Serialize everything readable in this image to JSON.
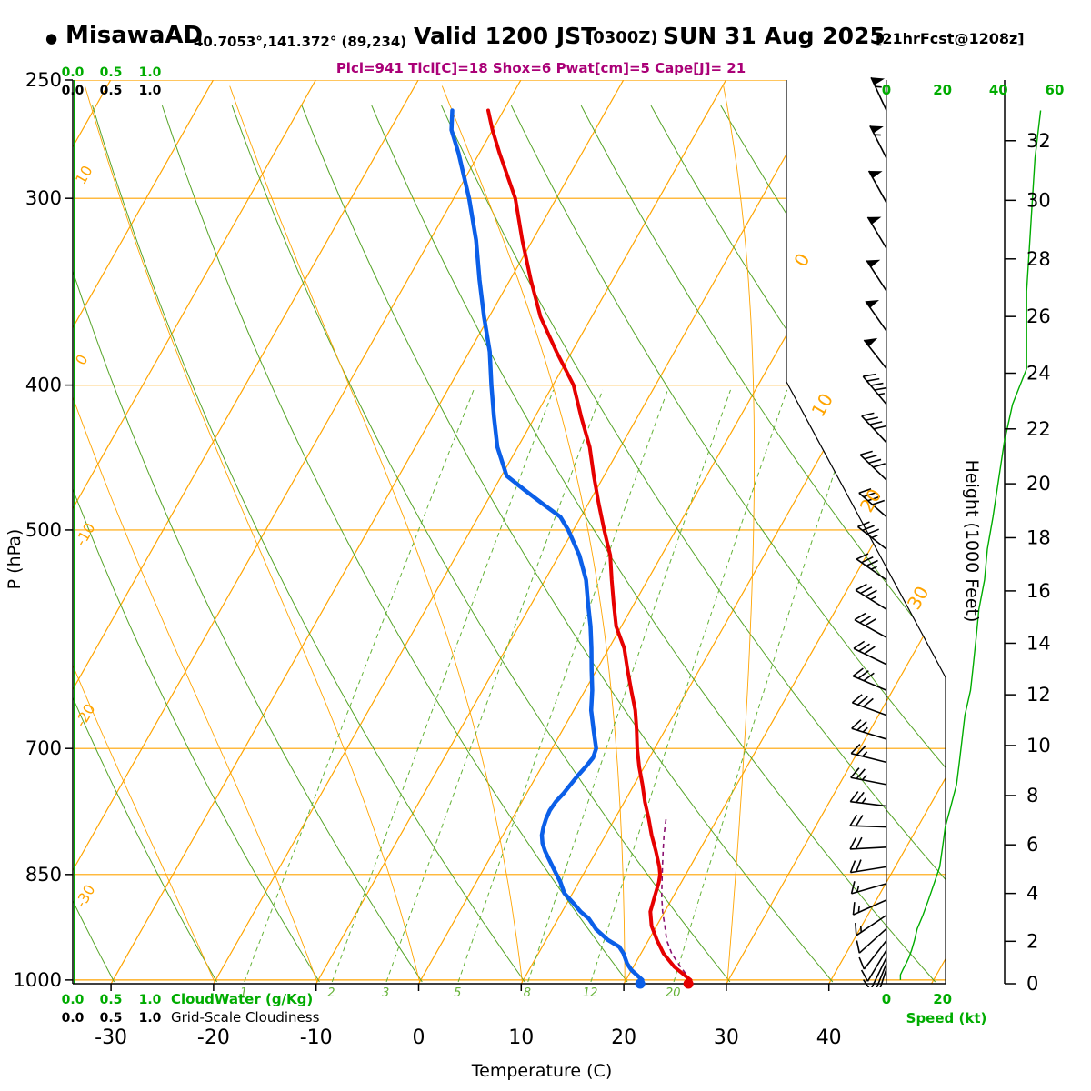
{
  "header": {
    "bullet": "●",
    "station": "MisawaAD",
    "coords": "40.7053°,141.372° (89,234)",
    "valid": "Valid 1200 JST",
    "valid_z": "(0300Z)",
    "valid_date": "SUN 31 Aug 2025",
    "fcst": "[21hrFcst@1208z]",
    "params": "Plcl=941 Tlcl[C]=18 Shox=6 Pwat[cm]=5 Cape[J]= 21"
  },
  "axis_titles": {
    "pressure": "P (hPa)",
    "temperature": "Temperature (C)",
    "height": "Height (1000 Feet)",
    "speed": "Speed (kt)"
  },
  "legends": {
    "cloudwater_scale": [
      "0.0",
      "0.5",
      "1.0"
    ],
    "cloudwater_label": "CloudWater (g/Kg)",
    "cloudiness_scale": [
      "0.0",
      "0.5",
      "1.0"
    ],
    "cloudiness_label": "Grid-Scale Cloudiness",
    "speed_bottom_ticks": [
      "0",
      "20"
    ]
  },
  "colors": {
    "grid_orange": "#FFA400",
    "adiabat_green": "#55A427",
    "mixratio_green": "#64B236",
    "label_green": "#00AC00",
    "temp_red": "#E60000",
    "dew_blue": "#0B5FE8",
    "parcel_purple": "#8A1070",
    "params_magenta": "#AA0077",
    "black": "#000000"
  },
  "chart_data": {
    "type": "skewt_log_p_sounding",
    "station": "MisawaAD 40.7053°,141.372° (89,234)",
    "valid": "Valid 1200 JST (0300Z) SUN 31 Aug 2025 [21hrFcst@1208z]",
    "indices": {
      "plcl_hpa": 941,
      "tlcl_c": 18,
      "showalter": 6,
      "pwat_cm": 5,
      "cape_j": 21
    },
    "pressure_ticks_hpa": [
      250,
      300,
      400,
      500,
      700,
      850,
      1000
    ],
    "temp_ticks_c": [
      -30,
      -20,
      -10,
      0,
      10,
      20,
      30,
      40
    ],
    "height_ticks_kft": [
      0,
      2,
      4,
      6,
      8,
      10,
      12,
      14,
      16,
      18,
      20,
      22,
      24,
      26,
      28,
      30,
      32
    ],
    "speed_ticks_kt": [
      0,
      20,
      40,
      60
    ],
    "isotherm_labels_left_c": [
      10,
      0,
      -10,
      -20,
      -30
    ],
    "isotherm_labels_right_c": [
      0,
      10,
      20,
      30
    ],
    "mixing_ratio_labels_gkg": [
      1,
      2,
      3,
      5,
      8,
      12,
      20
    ],
    "temperature_profile_p_c": [
      [
        262,
        -41.5
      ],
      [
        270,
        -40
      ],
      [
        280,
        -38
      ],
      [
        300,
        -34
      ],
      [
        320,
        -31
      ],
      [
        340,
        -28
      ],
      [
        360,
        -25
      ],
      [
        380,
        -21.5
      ],
      [
        400,
        -18
      ],
      [
        420,
        -15.5
      ],
      [
        440,
        -13
      ],
      [
        460,
        -11
      ],
      [
        480,
        -9
      ],
      [
        500,
        -7
      ],
      [
        520,
        -5
      ],
      [
        540,
        -3.5
      ],
      [
        560,
        -2
      ],
      [
        580,
        -0.5
      ],
      [
        600,
        1.5
      ],
      [
        620,
        3
      ],
      [
        640,
        4.5
      ],
      [
        660,
        6
      ],
      [
        680,
        7.2
      ],
      [
        700,
        8.3
      ],
      [
        720,
        9.5
      ],
      [
        740,
        10.8
      ],
      [
        760,
        12
      ],
      [
        780,
        13.3
      ],
      [
        800,
        14.5
      ],
      [
        820,
        15.8
      ],
      [
        840,
        17
      ],
      [
        850,
        17.5
      ],
      [
        860,
        17.8
      ],
      [
        880,
        18.2
      ],
      [
        900,
        18.6
      ],
      [
        920,
        19.5
      ],
      [
        940,
        20.8
      ],
      [
        960,
        22.2
      ],
      [
        980,
        24
      ],
      [
        1000,
        26.3
      ]
    ],
    "dewpoint_profile_p_c": [
      [
        262,
        -45
      ],
      [
        270,
        -44
      ],
      [
        280,
        -42
      ],
      [
        300,
        -38.5
      ],
      [
        320,
        -35.5
      ],
      [
        340,
        -33
      ],
      [
        360,
        -30.5
      ],
      [
        380,
        -28
      ],
      [
        400,
        -26
      ],
      [
        420,
        -24
      ],
      [
        440,
        -22
      ],
      [
        460,
        -19.5
      ],
      [
        470,
        -17
      ],
      [
        480,
        -14.5
      ],
      [
        490,
        -12
      ],
      [
        500,
        -10.5
      ],
      [
        520,
        -8
      ],
      [
        540,
        -6
      ],
      [
        560,
        -4.5
      ],
      [
        580,
        -3
      ],
      [
        600,
        -1.7
      ],
      [
        620,
        -0.5
      ],
      [
        640,
        0.7
      ],
      [
        660,
        1.7
      ],
      [
        680,
        3
      ],
      [
        700,
        4.3
      ],
      [
        710,
        4.5
      ],
      [
        720,
        4.3
      ],
      [
        730,
        4
      ],
      [
        740,
        3.8
      ],
      [
        750,
        3.6
      ],
      [
        760,
        3.3
      ],
      [
        770,
        3.2
      ],
      [
        780,
        3.3
      ],
      [
        790,
        3.5
      ],
      [
        800,
        3.8
      ],
      [
        810,
        4.3
      ],
      [
        820,
        5
      ],
      [
        830,
        5.8
      ],
      [
        840,
        6.6
      ],
      [
        850,
        7.4
      ],
      [
        860,
        8.2
      ],
      [
        875,
        9.2
      ],
      [
        890,
        10.8
      ],
      [
        900,
        11.8
      ],
      [
        910,
        13
      ],
      [
        925,
        14.3
      ],
      [
        940,
        16
      ],
      [
        950,
        17.5
      ],
      [
        960,
        18.3
      ],
      [
        975,
        19.2
      ],
      [
        985,
        20
      ],
      [
        1000,
        21.6
      ]
    ],
    "parcel_path_p_c": [
      [
        1000,
        26.3
      ],
      [
        980,
        24.6
      ],
      [
        960,
        23
      ],
      [
        941,
        21.8
      ],
      [
        920,
        20.8
      ],
      [
        900,
        19.8
      ],
      [
        880,
        18.9
      ],
      [
        860,
        18.1
      ],
      [
        840,
        17.3
      ],
      [
        820,
        16.5
      ],
      [
        800,
        15.7
      ],
      [
        780,
        15
      ]
    ],
    "surface_temperature_c": 26.3,
    "surface_dewpoint_c": 21.6,
    "wind_profile_p_kt_dir": [
      [
        262,
        55,
        335
      ],
      [
        282,
        53,
        333
      ],
      [
        302,
        52,
        331
      ],
      [
        324,
        51,
        329
      ],
      [
        346,
        50,
        327
      ],
      [
        368,
        50,
        325
      ],
      [
        390,
        50,
        322
      ],
      [
        412,
        45,
        320
      ],
      [
        437,
        42,
        317
      ],
      [
        463,
        40,
        314
      ],
      [
        490,
        38,
        311
      ],
      [
        515,
        36,
        308
      ],
      [
        540,
        35,
        305
      ],
      [
        565,
        33,
        302
      ],
      [
        590,
        32,
        299
      ],
      [
        615,
        31,
        296
      ],
      [
        640,
        30,
        293
      ],
      [
        665,
        28,
        290
      ],
      [
        690,
        27,
        287
      ],
      [
        715,
        26,
        284
      ],
      [
        740,
        25,
        281
      ],
      [
        765,
        23,
        277
      ],
      [
        790,
        21,
        272
      ],
      [
        815,
        20,
        267
      ],
      [
        840,
        19,
        261
      ],
      [
        862,
        17,
        254
      ],
      [
        884,
        15,
        246
      ],
      [
        905,
        13,
        236
      ],
      [
        924,
        11,
        228
      ],
      [
        941,
        10,
        218
      ],
      [
        955,
        9,
        211
      ],
      [
        966,
        8,
        206
      ],
      [
        975,
        7,
        202
      ],
      [
        983,
        6,
        198
      ],
      [
        992,
        5,
        190
      ],
      [
        1000,
        5,
        185
      ]
    ],
    "cloud_water_profile_gkg": [
      [
        1000,
        0
      ],
      [
        250,
        0
      ]
    ],
    "grid_scale_cloudiness": [
      [
        1000,
        0
      ],
      [
        250,
        0
      ]
    ]
  }
}
